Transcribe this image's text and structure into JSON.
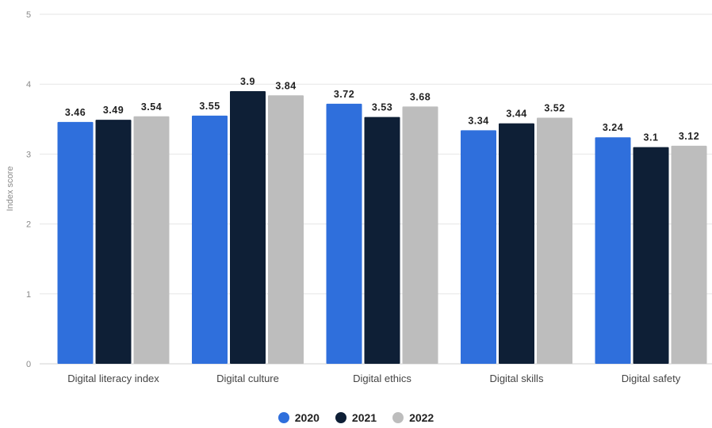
{
  "chart_data": {
    "type": "bar",
    "categories": [
      "Digital literacy index",
      "Digital culture",
      "Digital ethics",
      "Digital skills",
      "Digital safety"
    ],
    "series": [
      {
        "name": "2020",
        "values": [
          3.46,
          3.55,
          3.72,
          3.34,
          3.24
        ],
        "color": "#2f6fdc"
      },
      {
        "name": "2021",
        "values": [
          3.49,
          3.9,
          3.53,
          3.44,
          3.1
        ],
        "color": "#0e1f36"
      },
      {
        "name": "2022",
        "values": [
          3.54,
          3.84,
          3.68,
          3.52,
          3.12
        ],
        "color": "#bdbdbd"
      }
    ],
    "data_labels": [
      [
        "3.46",
        "3.55",
        "3.72",
        "3.34",
        "3.24"
      ],
      [
        "3.49",
        "3.9",
        "3.53",
        "3.44",
        "3.1"
      ],
      [
        "3.54",
        "3.84",
        "3.68",
        "3.52",
        "3.12"
      ]
    ],
    "ylabel": "Index score",
    "ylim": [
      0,
      5
    ],
    "yticks": [
      "0",
      "1",
      "2",
      "3",
      "4",
      "5"
    ],
    "grid": true,
    "legend": "bottom-center"
  }
}
